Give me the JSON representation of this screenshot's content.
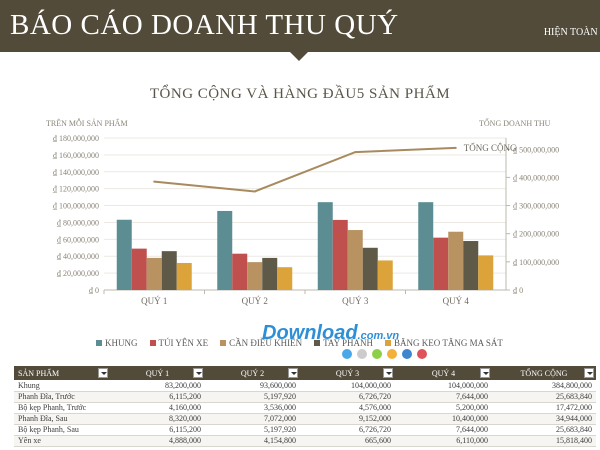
{
  "header": {
    "title": "BÁO CÁO DOANH THU QUÝ",
    "right_link": "HIỆN TOÀN BỘ"
  },
  "chart": {
    "left_axis_title": "TRÊN MỖI SẢN PHẨM",
    "right_axis_title": "TỔNG DOANH THU"
  },
  "chart_data": {
    "type": "bar",
    "title": "TỔNG CỘNG VÀ HÀNG ĐẦU5 SẢN PHẨM",
    "categories": [
      "QUÝ 1",
      "QUÝ 2",
      "QUÝ 3",
      "QUÝ 4"
    ],
    "ylim": [
      0,
      180000000
    ],
    "y_ticks": [
      "₫ 180,000,000",
      "₫ 160,000,000",
      "₫ 140,000,000",
      "₫ 120,000,000",
      "₫ 100,000,000",
      "₫ 80,000,000",
      "₫ 60,000,000",
      "₫ 40,000,000",
      "₫ 20,000,000",
      "₫ 0"
    ],
    "y2lim": [
      0,
      540000000
    ],
    "y2_ticks": [
      "₫ 500,000,000",
      "₫ 400,000,000",
      "₫ 300,000,000",
      "₫ 200,000,000",
      "₫ 100,000,000",
      "₫ 0"
    ],
    "series": [
      {
        "name": "KHUNG",
        "color": "#5b8d93",
        "values": [
          83200000,
          93600000,
          104000000,
          104000000
        ]
      },
      {
        "name": "TÚI YÊN XE",
        "color": "#c0504d",
        "values": [
          49000000,
          43000000,
          83000000,
          62000000
        ]
      },
      {
        "name": "CẦN ĐIỀU KHIỂN",
        "color": "#b89260",
        "values": [
          38000000,
          33000000,
          71000000,
          69000000
        ]
      },
      {
        "name": "TAY PHANH",
        "color": "#5f5a48",
        "values": [
          46000000,
          38000000,
          50000000,
          58000000
        ]
      },
      {
        "name": "BĂNG KEO TĂNG MA SÁT",
        "color": "#dba33a",
        "values": [
          32000000,
          27000000,
          35000000,
          41000000
        ]
      }
    ],
    "line_series": {
      "name": "TỔNG CỘNG",
      "color": "#a88a5e",
      "axis": "right",
      "values": [
        385000000,
        350000000,
        490000000,
        505000000
      ]
    }
  },
  "watermark": {
    "brand": "Download",
    "suffix": ".com.vn",
    "dot_colors": [
      "#4aa8e8",
      "#cccccc",
      "#8ecf4a",
      "#f3b13b",
      "#3f86d0",
      "#e0525a"
    ]
  },
  "table": {
    "headers": [
      "SẢN PHẨM",
      "QUÝ 1",
      "QUÝ 2",
      "QUÝ 3",
      "QUÝ 4",
      "TỔNG CỘNG"
    ],
    "rows": [
      [
        "Khung",
        "83,200,000",
        "93,600,000",
        "104,000,000",
        "104,000,000",
        "384,800,000"
      ],
      [
        "Phanh Đĩa, Trước",
        "6,115,200",
        "5,197,920",
        "6,726,720",
        "7,644,000",
        "25,683,840"
      ],
      [
        "Bộ kẹp Phanh, Trước",
        "4,160,000",
        "3,536,000",
        "4,576,000",
        "5,200,000",
        "17,472,000"
      ],
      [
        "Phanh Đĩa, Sau",
        "8,320,000",
        "7,072,000",
        "9,152,000",
        "10,400,000",
        "34,944,000"
      ],
      [
        "Bộ kẹp Phanh, Sau",
        "6,115,200",
        "5,197,920",
        "6,726,720",
        "7,644,000",
        "25,683,840"
      ],
      [
        "Yên xe",
        "4,888,000",
        "4,154,800",
        "665,600",
        "6,110,000",
        "15,818,400"
      ]
    ]
  }
}
